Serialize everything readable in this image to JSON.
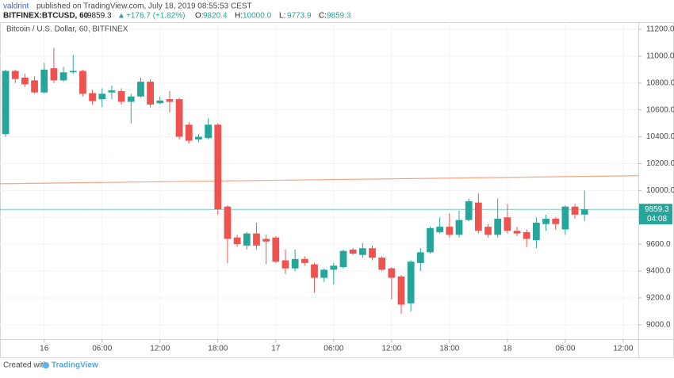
{
  "header": {
    "author": "valdrint",
    "published": "published on TradingView.com, July 18, 2019 08:55:53 CEST",
    "symbol": "BITFINEX:BTCUSD, 60",
    "price": 9859.3,
    "arrow": "▲",
    "change": "+176.7 (+1.82%)",
    "ohlc": [
      {
        "label": "O:",
        "value": "9820.4"
      },
      {
        "label": "H:",
        "value": "10000.0"
      },
      {
        "label": "L:",
        "value": "9773.9"
      },
      {
        "label": "C:",
        "value": "9859.3"
      }
    ]
  },
  "chart_data": {
    "type": "candlestick",
    "title": "Bitcoin / U.S. Dollar, 60, BITFINEX",
    "open": [
      10420,
      10890,
      10840,
      10820,
      10730,
      10910,
      10820,
      10880,
      10890,
      10725,
      10680,
      10730,
      10740,
      10660,
      10700,
      10810,
      10650,
      10680,
      10680,
      10490,
      10380,
      10390,
      10490,
      9880,
      9650,
      9590,
      9680,
      9640,
      9650,
      9480,
      9420,
      9490,
      9450,
      9350,
      9410,
      9430,
      9560,
      9520,
      9570,
      9500,
      9420,
      9360,
      9160,
      9460,
      9540,
      9690,
      9730,
      9670,
      9780,
      9910,
      9730,
      9670,
      9800,
      9700,
      9690,
      9630,
      9750,
      9790,
      9710,
      9880,
      9820.4
    ],
    "high": [
      10900,
      10900,
      10870,
      10850,
      10950,
      11060,
      10920,
      11010,
      10900,
      10750,
      10760,
      10780,
      10760,
      10720,
      10840,
      10830,
      10700,
      10740,
      10690,
      10510,
      10420,
      10540,
      10500,
      9890,
      9670,
      9690,
      9760,
      9670,
      9660,
      9560,
      9560,
      9510,
      9460,
      9420,
      9460,
      9560,
      9570,
      9610,
      9590,
      9510,
      9430,
      9370,
      9480,
      9570,
      9730,
      9800,
      9830,
      9850,
      9940,
      9980,
      9750,
      9940,
      9900,
      9730,
      9710,
      9800,
      9820,
      9800,
      9890,
      9900,
      10000
    ],
    "low": [
      10400,
      10800,
      10770,
      10720,
      10720,
      10800,
      10810,
      10870,
      10700,
      10640,
      10620,
      10680,
      10640,
      10500,
      10690,
      10620,
      10640,
      10580,
      10380,
      10350,
      10360,
      10380,
      9820,
      9460,
      9580,
      9560,
      9560,
      9450,
      9460,
      9380,
      9400,
      9440,
      9240,
      9320,
      9300,
      9420,
      9520,
      9500,
      9480,
      9400,
      9190,
      9080,
      9100,
      9400,
      9530,
      9680,
      9650,
      9650,
      9770,
      9680,
      9650,
      9650,
      9680,
      9660,
      9580,
      9570,
      9700,
      9710,
      9670,
      9790,
      9773.9
    ],
    "close": [
      10890,
      10830,
      10790,
      10730,
      10900,
      10820,
      10880,
      10890,
      10720,
      10665,
      10720,
      10745,
      10660,
      10700,
      10810,
      10640,
      10670,
      10660,
      10400,
      10370,
      10400,
      10490,
      9860,
      9640,
      9600,
      9680,
      9590,
      9620,
      9470,
      9420,
      9490,
      9460,
      9350,
      9410,
      9440,
      9550,
      9530,
      9570,
      9500,
      9410,
      9350,
      9150,
      9470,
      9540,
      9720,
      9730,
      9670,
      9780,
      9920,
      9700,
      9670,
      9790,
      9700,
      9680,
      9640,
      9760,
      9790,
      9750,
      9880,
      9820,
      9859.3
    ],
    "up_color": "#26a69a",
    "down_color": "#ef5350",
    "xlim": [
      -0.58,
      65.57
    ],
    "xticks": [
      {
        "value": 4,
        "label": "16"
      },
      {
        "value": 10,
        "label": "06:00"
      },
      {
        "value": 16,
        "label": "12:00"
      },
      {
        "value": 22,
        "label": "18:00"
      },
      {
        "value": 28,
        "label": "17"
      },
      {
        "value": 34,
        "label": "06:00"
      },
      {
        "value": 40,
        "label": "12:00"
      },
      {
        "value": 46,
        "label": "18:00"
      },
      {
        "value": 52,
        "label": "18"
      },
      {
        "value": 58,
        "label": "06:00"
      },
      {
        "value": 64,
        "label": "12:00"
      }
    ],
    "ylim": [
      8893,
      11253
    ],
    "yticks": [
      {
        "value": 9000,
        "label": "9000.0"
      },
      {
        "value": 9200,
        "label": "9200.0"
      },
      {
        "value": 9400,
        "label": "9400.0"
      },
      {
        "value": 9600,
        "label": "9600.0"
      },
      {
        "value": 9800,
        "label": "9800.0"
      },
      {
        "value": 10000,
        "label": "10000.0"
      },
      {
        "value": 10200,
        "label": "10200.0"
      },
      {
        "value": 10400,
        "label": "10400.0"
      },
      {
        "value": 10600,
        "label": "10600.0"
      },
      {
        "value": 10800,
        "label": "10800.0"
      },
      {
        "value": 11000,
        "label": "11000.0"
      },
      {
        "value": 11200,
        "label": "11200.0"
      }
    ],
    "grid": true,
    "trend_line": {
      "color": "#f4a582",
      "values": [
        10050,
        10110
      ]
    },
    "last_price": {
      "value": 9859.3,
      "countdown": "04:08",
      "color": "#26a69a"
    }
  },
  "footer": {
    "created": "Created with",
    "brand": "TradingView"
  }
}
